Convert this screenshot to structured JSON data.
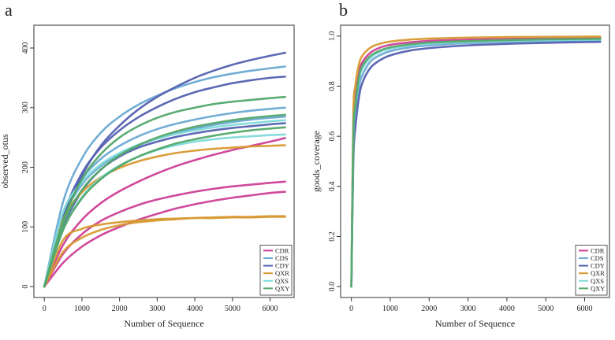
{
  "chart_data": [
    {
      "panel": "a",
      "type": "line",
      "xlabel": "Number of Sequence",
      "ylabel": "observed_otus",
      "xlim": [
        0,
        6500
      ],
      "ylim": [
        0,
        420
      ],
      "xticks": [
        0,
        1000,
        2000,
        3000,
        4000,
        5000,
        6000
      ],
      "yticks": [
        0,
        100,
        200,
        300,
        400
      ],
      "legend": {
        "position": "bottom-right",
        "entries": [
          "CDR",
          "CDS",
          "CDY",
          "QXR",
          "QXS",
          "QXY"
        ]
      },
      "x": [
        0,
        500,
        1000,
        1500,
        2000,
        2500,
        3000,
        3500,
        4000,
        4500,
        5000,
        5500,
        6000,
        6400
      ],
      "series": [
        {
          "name": "CDR",
          "group": "CDR",
          "values": [
            0,
            70,
            112,
            140,
            160,
            176,
            190,
            202,
            212,
            221,
            229,
            236,
            243,
            249
          ]
        },
        {
          "name": "CDR",
          "group": "CDR",
          "values": [
            0,
            55,
            88,
            110,
            125,
            137,
            146,
            153,
            159,
            164,
            168,
            171,
            174,
            176
          ]
        },
        {
          "name": "CDR",
          "group": "CDR",
          "values": [
            0,
            40,
            67,
            86,
            100,
            112,
            122,
            131,
            138,
            144,
            149,
            153,
            157,
            159
          ]
        },
        {
          "name": "CDS",
          "group": "CDS",
          "values": [
            0,
            142,
            215,
            258,
            285,
            305,
            320,
            333,
            343,
            351,
            357,
            362,
            366,
            369
          ]
        },
        {
          "name": "CDS",
          "group": "CDS",
          "values": [
            0,
            120,
            180,
            214,
            236,
            252,
            264,
            273,
            280,
            286,
            291,
            295,
            298,
            300
          ]
        },
        {
          "name": "CDS",
          "group": "CDS",
          "values": [
            0,
            115,
            171,
            202,
            222,
            237,
            248,
            257,
            265,
            271,
            276,
            280,
            283,
            285
          ]
        },
        {
          "name": "CDY",
          "group": "CDY",
          "values": [
            0,
            112,
            186,
            236,
            270,
            297,
            318,
            335,
            350,
            362,
            372,
            380,
            387,
            392
          ]
        },
        {
          "name": "CDY",
          "group": "CDY",
          "values": [
            0,
            120,
            190,
            233,
            262,
            284,
            301,
            315,
            326,
            334,
            341,
            346,
            350,
            352
          ]
        },
        {
          "name": "CDY",
          "group": "CDY",
          "values": [
            0,
            100,
            160,
            196,
            218,
            233,
            243,
            251,
            257,
            262,
            266,
            269,
            272,
            274
          ]
        },
        {
          "name": "QXR",
          "group": "QXR",
          "values": [
            0,
            112,
            158,
            183,
            199,
            210,
            218,
            224,
            228,
            231,
            233,
            235,
            236,
            237
          ]
        },
        {
          "name": "QXR",
          "group": "QXR",
          "values": [
            0,
            78,
            97,
            104,
            108,
            111,
            113,
            114,
            115,
            115,
            116,
            116,
            117,
            117
          ]
        },
        {
          "name": "QXR",
          "group": "QXR",
          "values": [
            0,
            58,
            82,
            95,
            103,
            108,
            111,
            113,
            115,
            116,
            117,
            117,
            118,
            118
          ]
        },
        {
          "name": "QXS",
          "group": "QXS",
          "values": [
            0,
            125,
            175,
            205,
            224,
            238,
            248,
            256,
            262,
            267,
            271,
            274,
            277,
            279
          ]
        },
        {
          "name": "QXS",
          "group": "QXS",
          "values": [
            0,
            95,
            150,
            182,
            203,
            218,
            229,
            237,
            243,
            247,
            250,
            252,
            254,
            255
          ]
        },
        {
          "name": "QXY",
          "group": "QXY",
          "values": [
            0,
            110,
            180,
            222,
            250,
            269,
            283,
            293,
            300,
            306,
            310,
            313,
            316,
            318
          ]
        },
        {
          "name": "QXY",
          "group": "QXY",
          "values": [
            0,
            105,
            162,
            196,
            220,
            237,
            250,
            260,
            268,
            274,
            279,
            283,
            286,
            288
          ]
        },
        {
          "name": "QXY",
          "group": "QXY",
          "values": [
            0,
            95,
            148,
            180,
            202,
            218,
            230,
            240,
            247,
            253,
            258,
            262,
            265,
            267
          ]
        }
      ]
    },
    {
      "panel": "b",
      "type": "line",
      "xlabel": "Number of Sequence",
      "ylabel": "goods_coverage",
      "xlim": [
        0,
        6500
      ],
      "ylim": [
        0,
        1.0
      ],
      "xticks": [
        0,
        1000,
        2000,
        3000,
        4000,
        5000,
        6000
      ],
      "yticks": [
        0.0,
        0.2,
        0.4,
        0.6,
        0.8,
        1.0
      ],
      "legend": {
        "position": "bottom-right",
        "entries": [
          "CDR",
          "CDS",
          "CDY",
          "QXR",
          "QXS",
          "QXY"
        ]
      },
      "x": [
        0,
        50,
        100,
        200,
        300,
        500,
        750,
        1000,
        1500,
        2000,
        3000,
        4000,
        5000,
        6400
      ],
      "series": [
        {
          "name": "CDR",
          "group": "CDR",
          "values": [
            0,
            0.62,
            0.75,
            0.86,
            0.9,
            0.935,
            0.955,
            0.965,
            0.975,
            0.981,
            0.986,
            0.989,
            0.991,
            0.993
          ]
        },
        {
          "name": "CDS",
          "group": "CDS",
          "values": [
            0,
            0.55,
            0.68,
            0.8,
            0.85,
            0.9,
            0.925,
            0.94,
            0.955,
            0.963,
            0.972,
            0.977,
            0.98,
            0.983
          ]
        },
        {
          "name": "CDY",
          "group": "CDY",
          "values": [
            0,
            0.5,
            0.63,
            0.76,
            0.82,
            0.875,
            0.905,
            0.923,
            0.942,
            0.952,
            0.963,
            0.969,
            0.973,
            0.977
          ]
        },
        {
          "name": "QXR",
          "group": "QXR",
          "values": [
            0,
            0.68,
            0.8,
            0.89,
            0.925,
            0.955,
            0.97,
            0.978,
            0.986,
            0.99,
            0.994,
            0.996,
            0.997,
            0.998
          ]
        },
        {
          "name": "QXS",
          "group": "QXS",
          "values": [
            0,
            0.58,
            0.71,
            0.83,
            0.875,
            0.915,
            0.938,
            0.95,
            0.963,
            0.97,
            0.977,
            0.981,
            0.984,
            0.986
          ]
        },
        {
          "name": "QXY",
          "group": "QXY",
          "values": [
            0,
            0.6,
            0.72,
            0.84,
            0.885,
            0.922,
            0.943,
            0.955,
            0.967,
            0.974,
            0.98,
            0.984,
            0.987,
            0.989
          ]
        }
      ]
    }
  ],
  "panel_labels": [
    "a",
    "b"
  ],
  "colors": {
    "CDR": "#cc3f97",
    "CDS": "#6aa9d4",
    "CDY": "#5461b0",
    "QXR": "#d89a33",
    "QXS": "#7fdada",
    "QXY": "#53a86a",
    "axis": "#333333"
  }
}
